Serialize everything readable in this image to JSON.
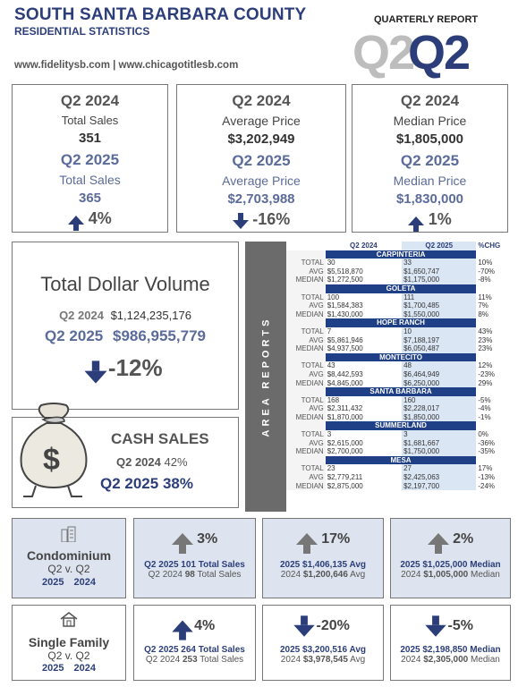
{
  "header": {
    "title": "SOUTH SANTA BARBARA COUNTY",
    "subtitle": "RESIDENTIAL STATISTICS",
    "websites": "www.fidelitysb.com | www.chicagotitlesb.com",
    "report_label": "QUARTERLY REPORT",
    "quarter_ghost": "Q2",
    "quarter_main": "Q2"
  },
  "stats": [
    {
      "y1": "Q2 2024",
      "l1": "Total Sales",
      "v1": "351",
      "y2": "Q2 2025",
      "l2": "Total Sales",
      "v2": "365",
      "direction": "up",
      "change": "4%"
    },
    {
      "y1": "Q2 2024",
      "l1": "Average Price",
      "v1": "$3,202,949",
      "y2": "Q2 2025",
      "l2": "Average  Price",
      "v2": "$2,703,988",
      "direction": "down",
      "change": "-16%"
    },
    {
      "y1": "Q2 2024",
      "l1": "Median Price",
      "v1": "$1,805,000",
      "y2": "Q2 2025",
      "l2": "Median Price",
      "v2": "$1,830,000",
      "direction": "up",
      "change": "1%"
    }
  ],
  "volume": {
    "title": "Total Dollar Volume",
    "y1": "Q2 2024",
    "v1": "$1,124,235,176",
    "y2": "Q2 2025",
    "v2": "$986,955,779",
    "change": "-12%"
  },
  "cash": {
    "title": "CASH SALES",
    "y1": "Q2 2024",
    "v1": "42%",
    "y2": "Q2 2025",
    "v2": "38%"
  },
  "area": {
    "side_label": "AREA REPORTS",
    "col_2024": "Q2 2024",
    "col_2025": "Q2 2025",
    "col_chg": "%CHG",
    "groups": [
      {
        "name": "CARPINTERIA",
        "rows": [
          [
            "TOTAL",
            "30",
            "33",
            "10%"
          ],
          [
            "AVG",
            "$5,518,870",
            "$1,650,747",
            "-70%"
          ],
          [
            "MEDIAN",
            "$1,272,500",
            "$1,175,000",
            "-8%"
          ]
        ]
      },
      {
        "name": "GOLETA",
        "rows": [
          [
            "TOTAL",
            "100",
            "111",
            "11%"
          ],
          [
            "AVG",
            "$1,584,383",
            "$1,700,485",
            "7%"
          ],
          [
            "MEDIAN",
            "$1,430,000",
            "$1,550,000",
            "8%"
          ]
        ]
      },
      {
        "name": "HOPE RANCH",
        "rows": [
          [
            "TOTAL",
            "7",
            "10",
            "43%"
          ],
          [
            "AVG",
            "$5,861,946",
            "$7,188,197",
            "23%"
          ],
          [
            "MEDIAN",
            "$4,937,500",
            "$6,050,487",
            "23%"
          ]
        ]
      },
      {
        "name": "MONTECITO",
        "rows": [
          [
            "TOTAL",
            "43",
            "48",
            "12%"
          ],
          [
            "AVG",
            "$8,442,593",
            "$6,464,949",
            "-23%"
          ],
          [
            "MEDIAN",
            "$4,845,000",
            "$6,250,000",
            "29%"
          ]
        ]
      },
      {
        "name": "SANTA BARBARA",
        "rows": [
          [
            "TOTAL",
            "168",
            "160",
            "-5%"
          ],
          [
            "AVG",
            "$2,311,432",
            "$2,228,017",
            "-4%"
          ],
          [
            "MEDIAN",
            "$1,870,000",
            "$1,850,000",
            "-1%"
          ]
        ]
      },
      {
        "name": "SUMMERLAND",
        "rows": [
          [
            "TOTAL",
            "3",
            "3",
            "0%"
          ],
          [
            "AVG",
            "$2,615,000",
            "$1,681,667",
            "-36%"
          ],
          [
            "MEDIAN",
            "$2,700,000",
            "$1,750,000",
            "-35%"
          ]
        ]
      },
      {
        "name": "MESA",
        "rows": [
          [
            "TOTAL",
            "23",
            "27",
            "17%"
          ],
          [
            "AVG",
            "$2,779,211",
            "$2,425,063",
            "-13%"
          ],
          [
            "MEDIAN",
            "$2,875,000",
            "$2,197,700",
            "-24%"
          ]
        ]
      }
    ]
  },
  "condo": {
    "title": "Condominium",
    "sub": "Q2 v. Q2",
    "y2": "2025",
    "y1": "2024",
    "sales_change": "3%",
    "sales_line1": "Q2 2025 101 Total Sales",
    "sales_line2_prefix": "Q2 2024",
    "sales_line2_value": "98",
    "sales_line2_suffix": "Total Sales",
    "avg_change": "17%",
    "avg_line1": "2025 $1,406,135 Avg",
    "avg_line2_prefix": "2024",
    "avg_line2_value": "$1,200,646",
    "avg_line2_suffix": "Avg",
    "median_change": "2%",
    "median_line1": "2025 $1,025,000 Median",
    "median_line2_prefix": "2024",
    "median_line2_value": "$1,005,000",
    "median_line2_suffix": "Median"
  },
  "sfr": {
    "title": "Single Family",
    "sub": "Q2 v. Q2",
    "y2": "2025",
    "y1": "2024",
    "sales_change": "4%",
    "sales_line1": "Q2 2025 264 Total Sales",
    "sales_line2_prefix": "Q2 2024",
    "sales_line2_value": "253",
    "sales_line2_suffix": "Total Sales",
    "avg_change": "-20%",
    "avg_line1": "2025 $3,200,516 Avg",
    "avg_line2_prefix": "2024",
    "avg_line2_value": "$3,978,545",
    "avg_line2_suffix": "Avg",
    "median_change": "-5%",
    "median_line1": "2025 $2,198,850 Median",
    "median_line2_prefix": "2024",
    "median_line2_value": "$2,305,000",
    "median_line2_suffix": "Median"
  }
}
